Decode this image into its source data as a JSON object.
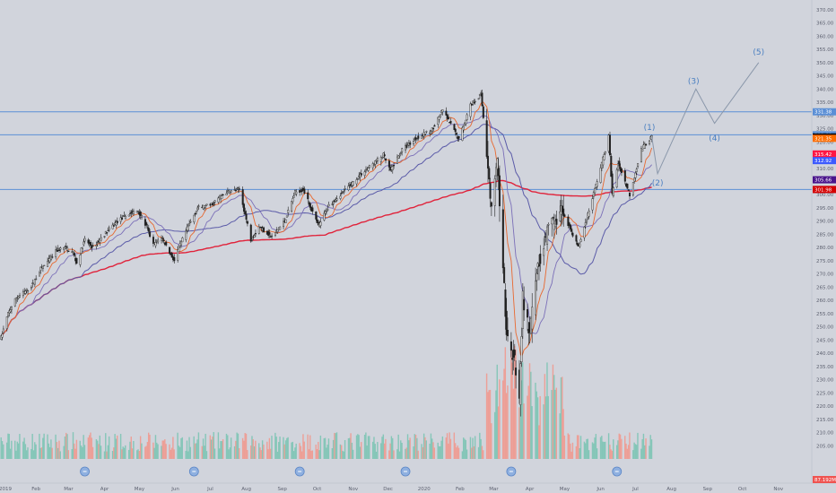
{
  "chart_data": {
    "type": "candlestick",
    "xlabel": "",
    "ylabel": "",
    "ylim": [
      200,
      372
    ],
    "grid": false,
    "x_ticks": [
      "2019",
      "Feb",
      "Mar",
      "Apr",
      "May",
      "Jun",
      "Jul",
      "Aug",
      "Sep",
      "Oct",
      "Nov",
      "Dec",
      "2020",
      "Feb",
      "Mar",
      "Apr",
      "May",
      "Jun",
      "Jul",
      "Aug",
      "Sep",
      "Oct",
      "Nov"
    ],
    "y_ticks": [
      "370.00",
      "365.00",
      "360.00",
      "355.00",
      "350.00",
      "345.00",
      "340.00",
      "335.00",
      "330.00",
      "325.00",
      "320.00",
      "315.00",
      "310.00",
      "305.00",
      "300.00",
      "295.00",
      "290.00",
      "285.00",
      "280.00",
      "275.00",
      "270.00",
      "265.00",
      "260.00",
      "255.00",
      "250.00",
      "245.00",
      "240.00",
      "235.00",
      "230.00",
      "225.00",
      "220.00",
      "215.00",
      "210.00",
      "205.00"
    ],
    "horizontal_levels": [
      {
        "value": 331.38,
        "label": "331.38"
      },
      {
        "value": 322.69,
        "label": "322.69"
      },
      {
        "value": 301.98,
        "label": "301.98"
      }
    ],
    "price_labels": [
      {
        "value": 321.85,
        "label": "321.85",
        "color": "#000000"
      },
      {
        "value": 321.35,
        "label": "321.35",
        "color": "#ff6d00"
      },
      {
        "value": 315.42,
        "label": "315.42",
        "color": "#ff1744"
      },
      {
        "value": 312.92,
        "label": "312.92",
        "color": "#3d5afe"
      },
      {
        "value": 305.66,
        "label": "305.66",
        "color": "#4a148c"
      },
      {
        "value": 301.98,
        "label": "301.98",
        "color": "#d50000"
      }
    ],
    "volume_label": {
      "label": "87.192M",
      "color": "#ef5350"
    },
    "wave_labels": [
      {
        "label": "(1)",
        "x": "2020-07-13",
        "y": 324.5
      },
      {
        "label": "(2)",
        "x": "2020-07-20",
        "y": 303.5
      },
      {
        "label": "(3)",
        "x": "2020-08-20",
        "y": 342.0
      },
      {
        "label": "(4)",
        "x": "2020-09-07",
        "y": 320.5
      },
      {
        "label": "(5)",
        "x": "2020-10-15",
        "y": 353.0
      }
    ],
    "projection_path": [
      {
        "x": "2020-07-15",
        "y": 322.0
      },
      {
        "x": "2020-07-20",
        "y": 308.0
      },
      {
        "x": "2020-08-22",
        "y": 340.0
      },
      {
        "x": "2020-09-07",
        "y": 327.0
      },
      {
        "x": "2020-10-15",
        "y": 350.0
      }
    ],
    "price_path": [
      {
        "x": "2019-01-02",
        "y": 246
      },
      {
        "x": "2019-01-08",
        "y": 255
      },
      {
        "x": "2019-01-15",
        "y": 261
      },
      {
        "x": "2019-01-22",
        "y": 263
      },
      {
        "x": "2019-01-29",
        "y": 266
      },
      {
        "x": "2019-02-05",
        "y": 272
      },
      {
        "x": "2019-02-12",
        "y": 275
      },
      {
        "x": "2019-02-19",
        "y": 279
      },
      {
        "x": "2019-02-26",
        "y": 280
      },
      {
        "x": "2019-03-05",
        "y": 278
      },
      {
        "x": "2019-03-08",
        "y": 274
      },
      {
        "x": "2019-03-15",
        "y": 283
      },
      {
        "x": "2019-03-22",
        "y": 280
      },
      {
        "x": "2019-04-01",
        "y": 285
      },
      {
        "x": "2019-04-12",
        "y": 290
      },
      {
        "x": "2019-04-23",
        "y": 293
      },
      {
        "x": "2019-04-30",
        "y": 294
      },
      {
        "x": "2019-05-07",
        "y": 288
      },
      {
        "x": "2019-05-13",
        "y": 281
      },
      {
        "x": "2019-05-20",
        "y": 284
      },
      {
        "x": "2019-05-31",
        "y": 275
      },
      {
        "x": "2019-06-04",
        "y": 280
      },
      {
        "x": "2019-06-12",
        "y": 288
      },
      {
        "x": "2019-06-20",
        "y": 295
      },
      {
        "x": "2019-07-01",
        "y": 296
      },
      {
        "x": "2019-07-15",
        "y": 301
      },
      {
        "x": "2019-07-26",
        "y": 302
      },
      {
        "x": "2019-08-05",
        "y": 283
      },
      {
        "x": "2019-08-12",
        "y": 288
      },
      {
        "x": "2019-08-23",
        "y": 284
      },
      {
        "x": "2019-09-03",
        "y": 290
      },
      {
        "x": "2019-09-12",
        "y": 301
      },
      {
        "x": "2019-09-19",
        "y": 302
      },
      {
        "x": "2019-10-02",
        "y": 288
      },
      {
        "x": "2019-10-11",
        "y": 296
      },
      {
        "x": "2019-10-28",
        "y": 303
      },
      {
        "x": "2019-11-08",
        "y": 308
      },
      {
        "x": "2019-11-27",
        "y": 315
      },
      {
        "x": "2019-12-03",
        "y": 309
      },
      {
        "x": "2019-12-13",
        "y": 317
      },
      {
        "x": "2019-12-27",
        "y": 322
      },
      {
        "x": "2020-01-07",
        "y": 324
      },
      {
        "x": "2020-01-17",
        "y": 332
      },
      {
        "x": "2020-01-31",
        "y": 321
      },
      {
        "x": "2020-02-10",
        "y": 334
      },
      {
        "x": "2020-02-19",
        "y": 338
      },
      {
        "x": "2020-02-25",
        "y": 312
      },
      {
        "x": "2020-02-28",
        "y": 294
      },
      {
        "x": "2020-03-04",
        "y": 312
      },
      {
        "x": "2020-03-09",
        "y": 274
      },
      {
        "x": "2020-03-12",
        "y": 248
      },
      {
        "x": "2020-03-16",
        "y": 239
      },
      {
        "x": "2020-03-18",
        "y": 240
      },
      {
        "x": "2020-03-23",
        "y": 222
      },
      {
        "x": "2020-03-26",
        "y": 261
      },
      {
        "x": "2020-04-01",
        "y": 247
      },
      {
        "x": "2020-04-08",
        "y": 274
      },
      {
        "x": "2020-04-17",
        "y": 287
      },
      {
        "x": "2020-04-29",
        "y": 294
      },
      {
        "x": "2020-05-13",
        "y": 280
      },
      {
        "x": "2020-05-27",
        "y": 302
      },
      {
        "x": "2020-06-08",
        "y": 322
      },
      {
        "x": "2020-06-11",
        "y": 300
      },
      {
        "x": "2020-06-16",
        "y": 312
      },
      {
        "x": "2020-06-26",
        "y": 300
      },
      {
        "x": "2020-07-06",
        "y": 317
      },
      {
        "x": "2020-07-13",
        "y": 321
      },
      {
        "x": "2020-07-15",
        "y": 321.85
      }
    ]
  }
}
